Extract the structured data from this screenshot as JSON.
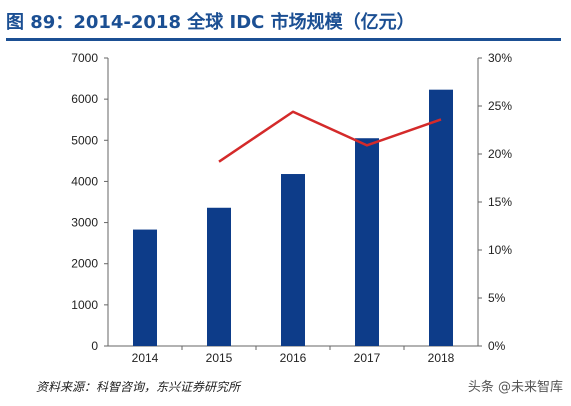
{
  "title": "图 89：2014-2018 全球 IDC 市场规模（亿元）",
  "source": "资料来源：科智咨询，东兴证券研究所",
  "watermark": "头条 @未来智库",
  "colors": {
    "bar": "#0d3c89",
    "line": "#d42a2a",
    "title": "#1b4f93",
    "axis": "#666666"
  },
  "chart_data": {
    "type": "bar",
    "categories": [
      "2014",
      "2015",
      "2016",
      "2017",
      "2018"
    ],
    "series": [
      {
        "type": "bar",
        "axis": "left",
        "values": [
          2830,
          3360,
          4180,
          5050,
          6230
        ]
      },
      {
        "type": "line",
        "axis": "right",
        "values": [
          null,
          19.2,
          24.4,
          20.9,
          23.6
        ]
      }
    ],
    "left_axis": {
      "ylim": [
        0,
        7000
      ],
      "ticks": [
        "0",
        "1000",
        "2000",
        "3000",
        "4000",
        "5000",
        "6000",
        "7000"
      ]
    },
    "right_axis": {
      "ylim": [
        0,
        30
      ],
      "ticks": [
        "0%",
        "5%",
        "10%",
        "15%",
        "20%",
        "25%",
        "30%"
      ]
    },
    "grid": false,
    "legend": "none"
  }
}
